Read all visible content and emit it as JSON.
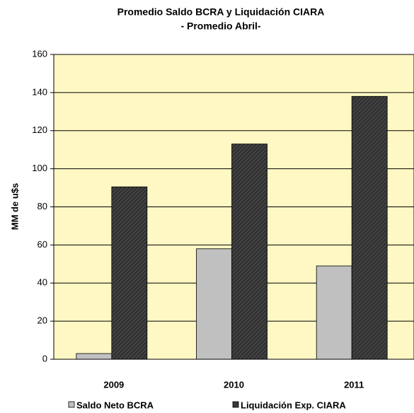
{
  "chart_data": {
    "type": "bar",
    "title": "Promedio Saldo BCRA y Liquidación CIARA",
    "subtitle": "- Promedio Abril-",
    "y_label": "MM de u$s",
    "categories": [
      "2009",
      "2010",
      "2011"
    ],
    "series": [
      {
        "name": "Saldo Neto BCRA",
        "color": "#c0c0c0",
        "values": [
          3,
          58,
          49
        ]
      },
      {
        "name": "Liquidación Exp. CIARA",
        "color": "#404040",
        "values": [
          90.5,
          113,
          138
        ]
      }
    ],
    "ylim": [
      0,
      160
    ],
    "yticks": [
      0,
      20,
      40,
      60,
      80,
      100,
      120,
      140,
      160
    ],
    "grid": true,
    "background": "#fff8c4",
    "legend": "bottom"
  }
}
